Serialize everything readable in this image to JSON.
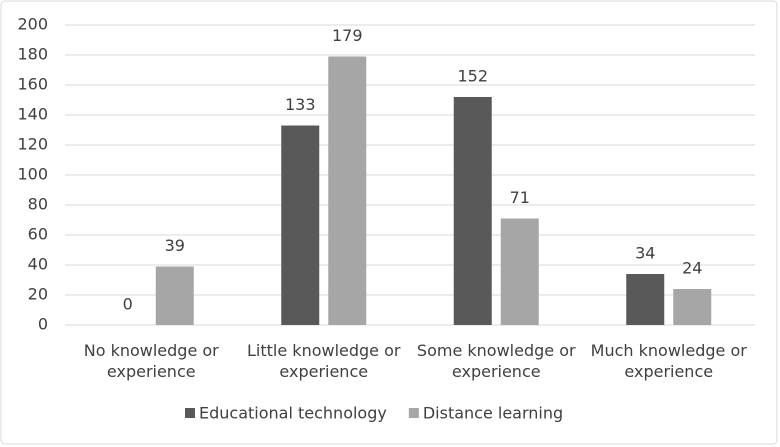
{
  "chart_data": {
    "type": "bar",
    "categories": [
      "No knowledge or experience",
      "Little knowledge or experience",
      "Some knowledge or experience",
      "Much knowledge or experience"
    ],
    "series": [
      {
        "name": "Educational technology",
        "color": "#595959",
        "values": [
          0,
          133,
          152,
          34
        ]
      },
      {
        "name": "Distance learning",
        "color": "#a6a6a6",
        "values": [
          39,
          179,
          71,
          24
        ]
      }
    ],
    "ylim": [
      0,
      200
    ],
    "yticks": [
      0,
      20,
      40,
      60,
      80,
      100,
      120,
      140,
      160,
      180,
      200
    ],
    "grid": true,
    "legend": "bottom"
  }
}
